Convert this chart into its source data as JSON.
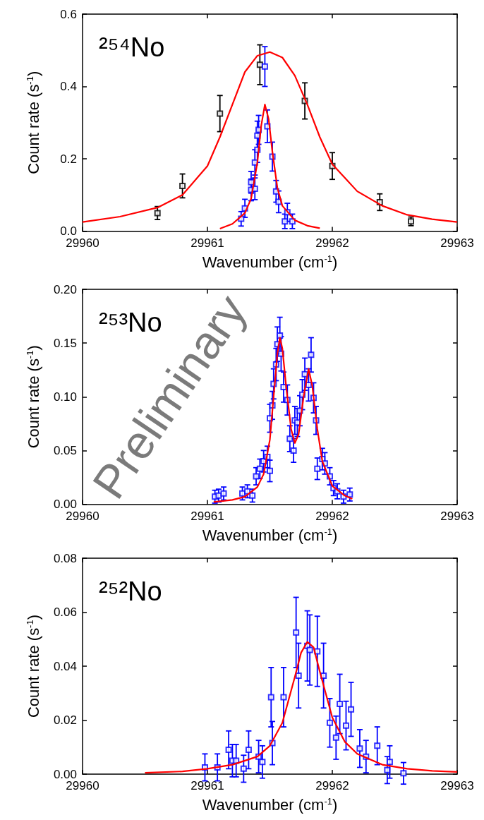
{
  "chart_data": [
    {
      "type": "scatter",
      "xlabel": "Wavenumber (cm$^{-1}$)",
      "ylabel": "Count rate (s$^{-1}$)",
      "annotations": [
        "²⁵⁴No"
      ],
      "marker": "square",
      "grid": false,
      "xlim": [
        29960,
        29963
      ],
      "xticks": [
        29960,
        29961,
        29962,
        29963
      ],
      "ylim": [
        0,
        0.6
      ],
      "yticks": [
        {
          "value": 0,
          "label": "0.0"
        },
        0.2,
        0.4,
        0.6
      ],
      "series": [
        {
          "color": "#000000",
          "x": [
            29960.6,
            29960.8,
            29961.1,
            29961.42,
            29961.78,
            29962.0,
            29962.38,
            29962.63
          ],
          "values": [
            0.05,
            0.125,
            0.325,
            0.46,
            0.36,
            0.18,
            0.08,
            0.027
          ],
          "errors": [
            0.018,
            0.033,
            0.05,
            0.055,
            0.05,
            0.037,
            0.023,
            0.012
          ]
        },
        {
          "color": "#0000ff",
          "x": [
            29961.27,
            29961.3,
            29961.35,
            29961.38,
            29961.35,
            29961.38,
            29961.4,
            29961.4,
            29961.41,
            29961.45,
            29961.46,
            29961.48,
            29961.52,
            29961.55,
            29961.57,
            29961.62,
            29961.64,
            29961.68
          ],
          "values": [
            0.034,
            0.063,
            0.114,
            0.117,
            0.135,
            0.19,
            0.225,
            0.264,
            0.28,
            null,
            0.455,
            0.29,
            0.206,
            0.11,
            0.081,
            0.027,
            0.052,
            0.027
          ],
          "errors": [
            0.02,
            0.025,
            0.03,
            0.03,
            0.03,
            0.035,
            0.035,
            0.04,
            0.04,
            null,
            0.055,
            0.045,
            0.04,
            0.03,
            0.03,
            0.02,
            0.025,
            0.02
          ]
        },
        {
          "type": "line",
          "marker": "none",
          "color": "#ff0000",
          "x": [
            29960,
            29960.3,
            29960.6,
            29960.8,
            29961,
            29961.1,
            29961.2,
            29961.3,
            29961.4,
            29961.5,
            29961.6,
            29961.7,
            29961.8,
            29961.9,
            29962,
            29962.2,
            29962.4,
            29962.6,
            29962.8,
            29963
          ],
          "values": [
            0.025,
            0.04,
            0.065,
            0.1,
            0.18,
            0.26,
            0.35,
            0.44,
            0.485,
            0.495,
            0.48,
            0.43,
            0.35,
            0.26,
            0.185,
            0.11,
            0.07,
            0.045,
            0.033,
            0.025
          ]
        },
        {
          "type": "line",
          "marker": "none",
          "color": "#ff0000",
          "x": [
            29961.1,
            29961.2,
            29961.3,
            29961.35,
            29961.4,
            29961.43,
            29961.46,
            29961.49,
            29961.52,
            29961.56,
            29961.6,
            29961.7,
            29961.8,
            29961.9
          ],
          "values": [
            0.007,
            0.02,
            0.05,
            0.09,
            0.19,
            0.29,
            0.35,
            0.31,
            0.22,
            0.12,
            0.07,
            0.03,
            0.015,
            0.008
          ]
        }
      ]
    },
    {
      "type": "scatter",
      "xlabel": "Wavenumber (cm$^{-1}$)",
      "ylabel": "Count rate (s$^{-1}$)",
      "annotations": [
        "²⁵³No",
        "Preliminary"
      ],
      "marker": "square",
      "grid": false,
      "xlim": [
        29960,
        29963
      ],
      "xticks": [
        29960,
        29961,
        29962,
        29963
      ],
      "ylim": [
        0,
        0.2
      ],
      "yticks": [
        {
          "value": 0,
          "label": "0.00"
        },
        0.05,
        {
          "value": 0.1,
          "label": "0.10"
        },
        0.15,
        {
          "value": 0.2,
          "label": "0.20"
        }
      ],
      "series": [
        {
          "color": "#0000ff",
          "x": [
            29961.06,
            29961.09,
            29961.13,
            29961.28,
            29961.32,
            29961.36,
            29961.39,
            29961.42,
            29961.45,
            29961.48,
            29961.5,
            29961.5,
            29961.52,
            29961.53,
            29961.55,
            29961.56,
            29961.58,
            29961.59,
            29961.61,
            29961.64,
            29961.66,
            29961.69,
            29961.7,
            29961.72,
            29961.74,
            29961.76,
            29961.78,
            29961.81,
            29961.83,
            29961.85,
            29961.87,
            29961.88,
            29961.92,
            29961.94,
            29961.98,
            29962.01,
            29962.04,
            29962.09,
            29962.14
          ],
          "values": [
            0.007,
            0.008,
            0.01,
            0.01,
            0.012,
            0.008,
            0.026,
            0.033,
            0.04,
            0.044,
            0.031,
            0.08,
            0.092,
            0.112,
            0.13,
            0.149,
            0.157,
            0.14,
            0.109,
            0.097,
            0.061,
            0.05,
            0.078,
            0.076,
            0.087,
            0.102,
            0.121,
            0.111,
            0.139,
            0.099,
            0.078,
            0.033,
            0.042,
            0.038,
            0.026,
            0.015,
            0.012,
            0.007,
            0.009
          ],
          "errors": [
            0.006,
            0.006,
            0.006,
            0.006,
            0.006,
            0.006,
            0.008,
            0.009,
            0.01,
            0.01,
            0.01,
            0.013,
            0.013,
            0.014,
            0.015,
            0.016,
            0.017,
            0.016,
            0.014,
            0.014,
            0.012,
            0.011,
            0.013,
            0.013,
            0.014,
            0.014,
            0.015,
            0.015,
            0.016,
            0.014,
            0.013,
            0.01,
            0.01,
            0.01,
            0.008,
            0.007,
            0.007,
            0.006,
            0.006
          ]
        },
        {
          "type": "line",
          "marker": "none",
          "color": "#ff0000",
          "x": [
            29961.05,
            29961.2,
            29961.3,
            29961.4,
            29961.45,
            29961.5,
            29961.53,
            29961.56,
            29961.58,
            29961.6,
            29961.63,
            29961.67,
            29961.7,
            29961.73,
            29961.77,
            29961.81,
            29961.84,
            29961.88,
            29961.92,
            29962,
            29962.1,
            29962.16
          ],
          "values": [
            0.002,
            0.004,
            0.007,
            0.016,
            0.028,
            0.06,
            0.1,
            0.14,
            0.155,
            0.145,
            0.11,
            0.07,
            0.057,
            0.065,
            0.1,
            0.126,
            0.11,
            0.07,
            0.04,
            0.017,
            0.008,
            0.005
          ]
        }
      ]
    },
    {
      "type": "scatter",
      "xlabel": "Wavenumber (cm$^{-1}$)",
      "ylabel": "Count rate (s$^{-1}$)",
      "annotations": [
        "²⁵²No"
      ],
      "marker": "square",
      "grid": false,
      "xlim": [
        29960,
        29963
      ],
      "xticks": [
        29960,
        29961,
        29962,
        29963
      ],
      "ylim": [
        0,
        0.08
      ],
      "yticks": [
        {
          "value": 0,
          "label": "0.00"
        },
        0.02,
        0.04,
        0.06,
        0.08
      ],
      "series": [
        {
          "color": "#0000ff",
          "x": [
            29960.98,
            29961.08,
            29961.17,
            29961.2,
            29961.23,
            29961.29,
            29961.33,
            29961.41,
            29961.44,
            29961.52,
            29961.51,
            29961.61,
            29961.71,
            29961.73,
            29961.8,
            29961.82,
            29961.88,
            29961.93,
            29961.98,
            29962.03,
            29962.06,
            29962.11,
            29962.15,
            29962.22,
            29962.27,
            29962.36,
            29962.44,
            29962.46,
            29962.57
          ],
          "values": [
            0.0025,
            0.0025,
            0.009,
            0.005,
            0.005,
            0.002,
            0.009,
            0.0065,
            0.0045,
            0.0115,
            0.0285,
            0.0285,
            0.0525,
            0.0365,
            0.0475,
            0.046,
            0.0455,
            0.0365,
            0.019,
            0.0135,
            0.026,
            0.018,
            0.024,
            0.0095,
            0.0065,
            0.0105,
            0.0015,
            0.0045,
            0.0003
          ],
          "errors": [
            0.005,
            0.005,
            0.007,
            0.006,
            0.006,
            0.005,
            0.007,
            0.006,
            0.006,
            0.008,
            0.011,
            0.011,
            0.013,
            0.012,
            0.013,
            0.013,
            0.013,
            0.012,
            0.009,
            0.008,
            0.011,
            0.009,
            0.01,
            0.007,
            0.006,
            0.007,
            0.005,
            0.006,
            0.004
          ]
        },
        {
          "type": "line",
          "marker": "none",
          "color": "#ff0000",
          "x": [
            29960.5,
            29960.8,
            29961,
            29961.2,
            29961.4,
            29961.5,
            29961.6,
            29961.7,
            29961.75,
            29961.8,
            29961.85,
            29961.9,
            29962,
            29962.1,
            29962.2,
            29962.4,
            29962.6,
            29962.8,
            29963
          ],
          "values": [
            0.0005,
            0.001,
            0.002,
            0.0035,
            0.0065,
            0.0105,
            0.019,
            0.036,
            0.045,
            0.049,
            0.047,
            0.038,
            0.021,
            0.012,
            0.0075,
            0.0035,
            0.002,
            0.0012,
            0.0008
          ]
        }
      ]
    }
  ]
}
